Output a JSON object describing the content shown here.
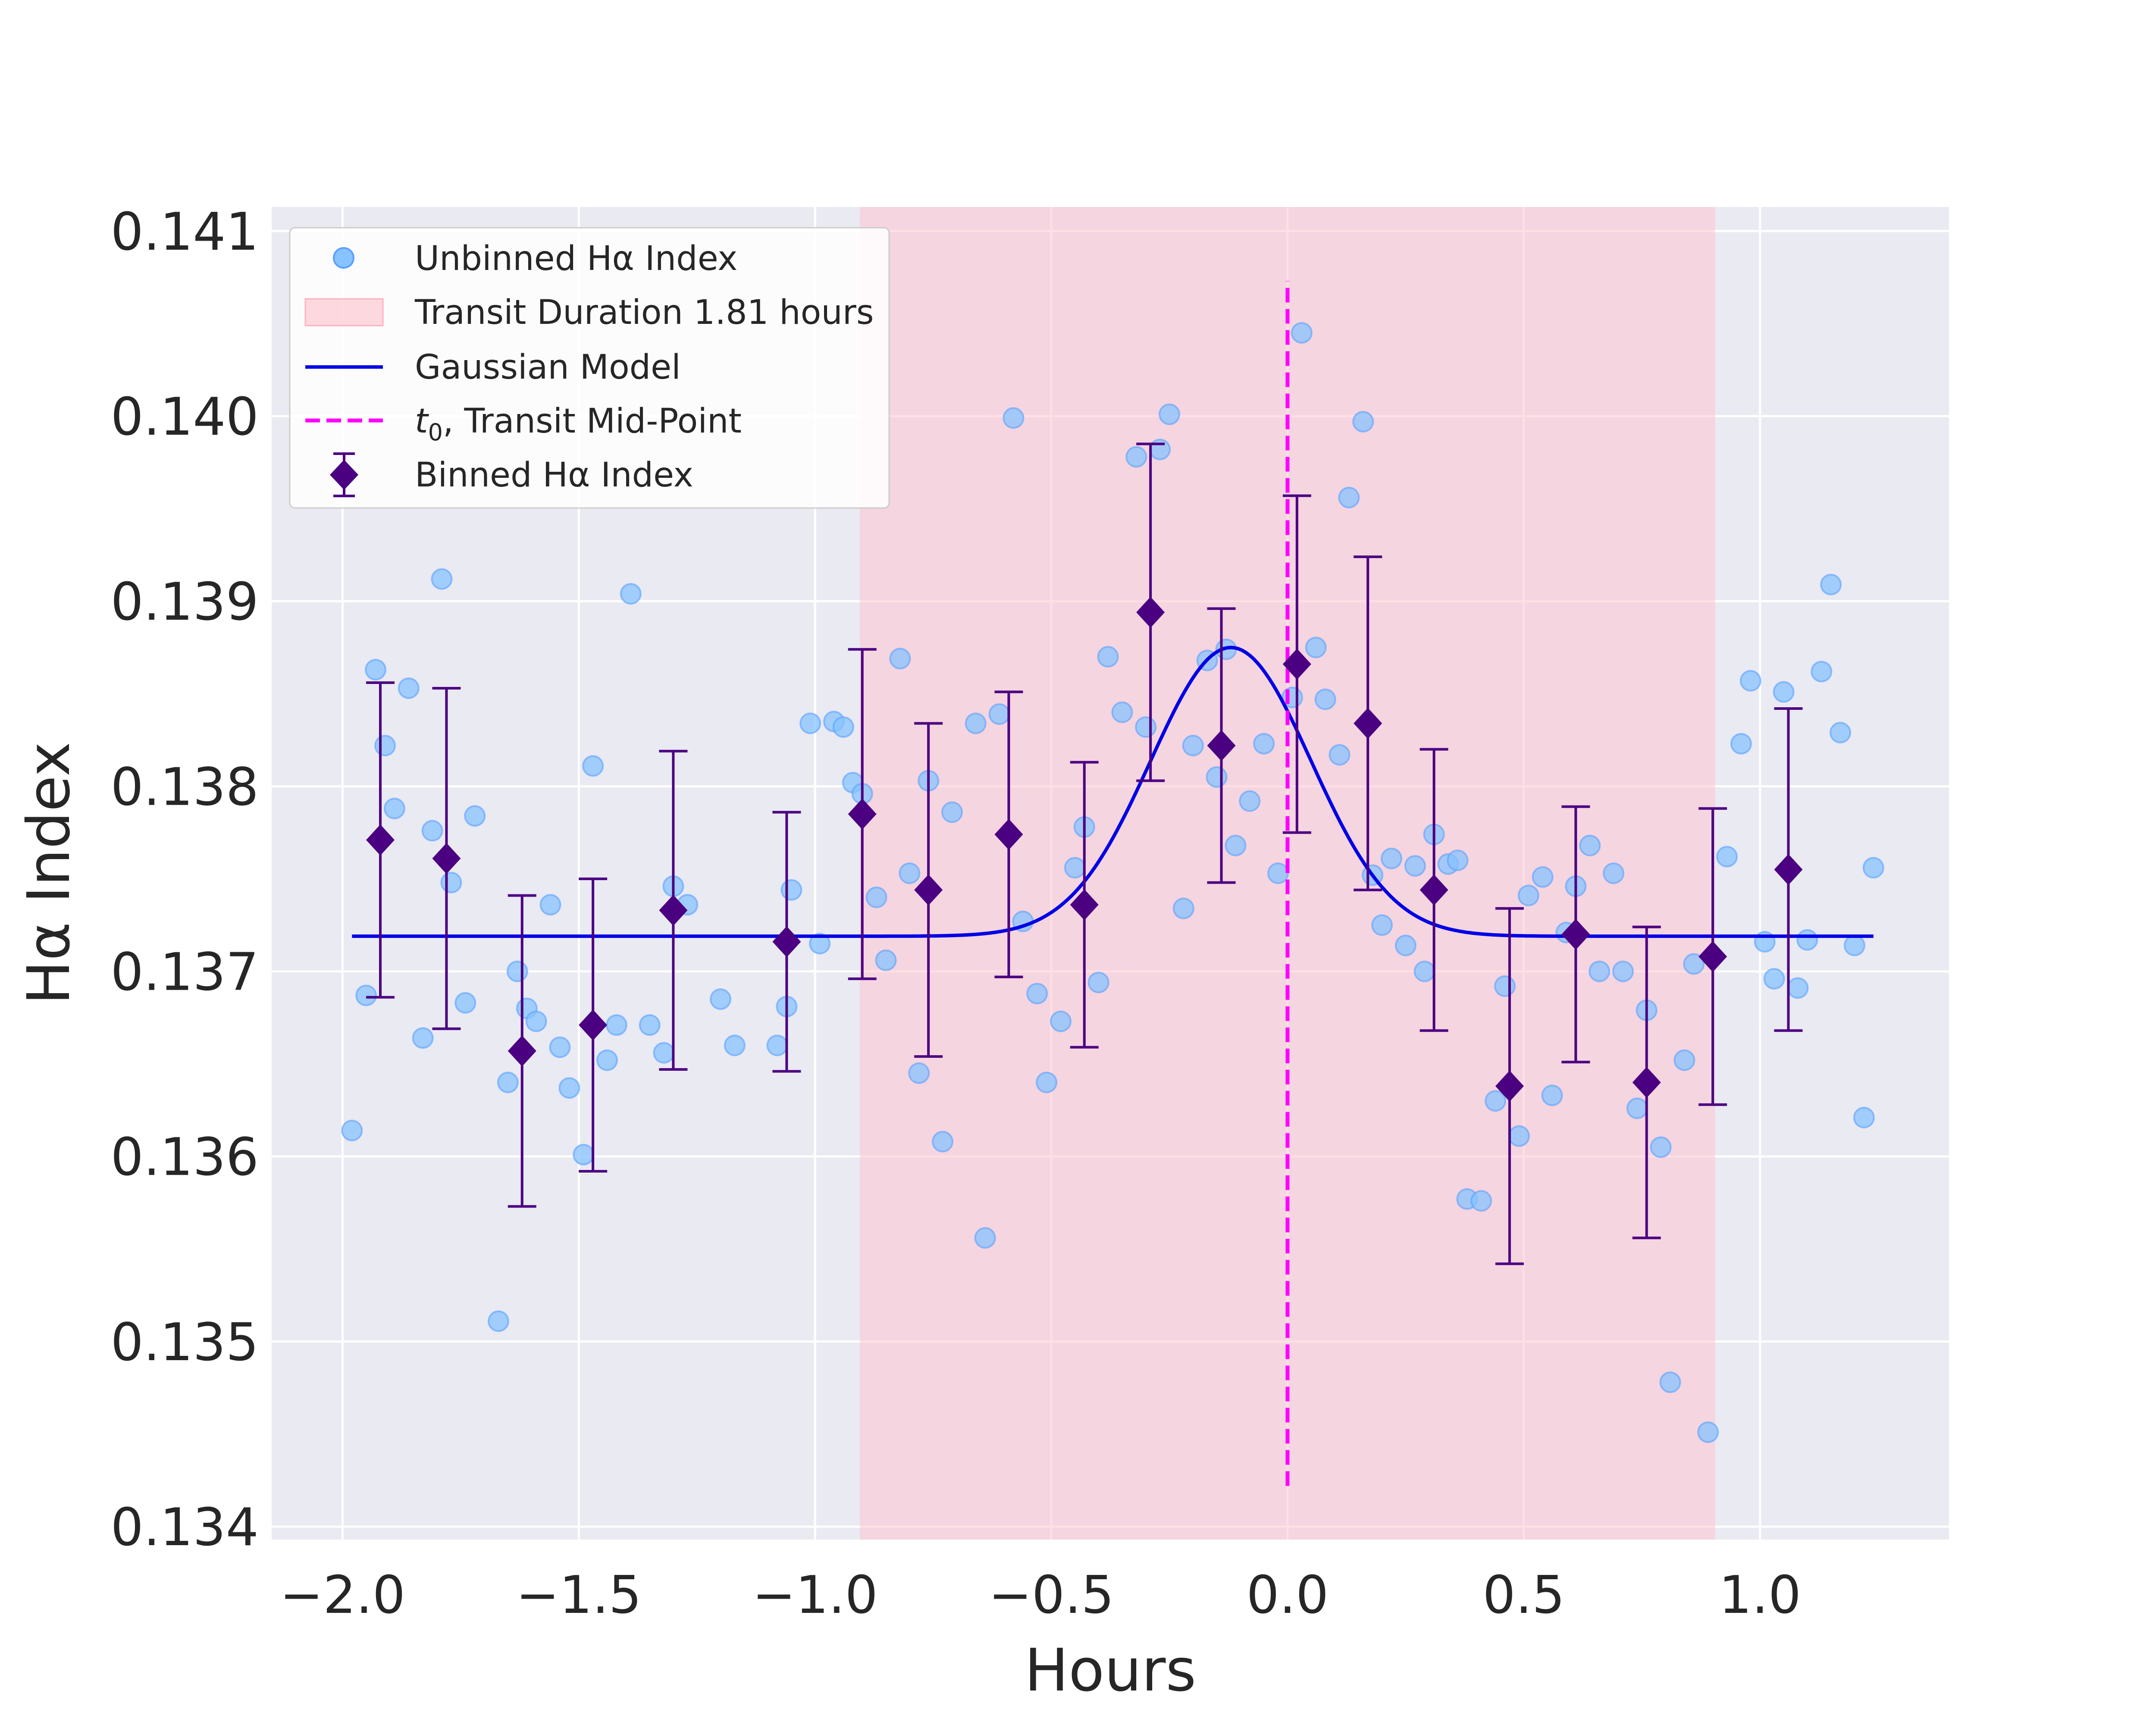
{
  "chart_data": {
    "type": "scatter",
    "title": "",
    "xlabel": "Hours",
    "ylabel": "Hα Index",
    "xlim": [
      -2.15,
      1.4
    ],
    "ylim": [
      0.13393,
      0.14113
    ],
    "x_ticks": [
      -2.0,
      -1.5,
      -1.0,
      -0.5,
      0.0,
      0.5,
      1.0
    ],
    "x_tick_labels": [
      "−2.0",
      "−1.5",
      "−1.0",
      "−0.5",
      "0.0",
      "0.5",
      "1.0"
    ],
    "y_ticks": [
      0.134,
      0.135,
      0.136,
      0.137,
      0.138,
      0.139,
      0.14,
      0.141
    ],
    "y_tick_labels": [
      "0.134",
      "0.135",
      "0.136",
      "0.137",
      "0.138",
      "0.139",
      "0.140",
      "0.141"
    ],
    "grid": true,
    "legend": {
      "placement": "upper-left",
      "items": [
        {
          "label": "Unbinned Hα Index",
          "kind": "scatter"
        },
        {
          "label": "Transit Duration 1.81 hours",
          "kind": "patch"
        },
        {
          "label": "Gaussian Model",
          "kind": "line"
        },
        {
          "label": "t0, Transit Mid-Point",
          "kind": "dashed"
        },
        {
          "label": "Binned Hα Index",
          "kind": "errorbar"
        }
      ]
    },
    "transit": {
      "start": -0.905,
      "end": 0.905,
      "label": "Transit Duration 1.81 hours"
    },
    "t0": {
      "x": 0.0,
      "y_range": [
        0.13422,
        0.14073
      ],
      "label": "t0, Transit Mid-Point"
    },
    "gaussian_model": {
      "baseline": 0.13719,
      "amplitude": 0.00156,
      "center": -0.12,
      "sigma": 0.17,
      "x_range": [
        -1.98,
        1.24
      ],
      "label": "Gaussian Model"
    },
    "unbinned": {
      "label": "Unbinned Hα Index",
      "x": [
        -1.98,
        -1.95,
        -1.93,
        -1.91,
        -1.89,
        -1.86,
        -1.83,
        -1.81,
        -1.79,
        -1.77,
        -1.74,
        -1.72,
        -1.67,
        -1.65,
        -1.63,
        -1.61,
        -1.59,
        -1.56,
        -1.54,
        -1.52,
        -1.49,
        -1.47,
        -1.44,
        -1.42,
        -1.39,
        -1.35,
        -1.32,
        -1.3,
        -1.27,
        -1.2,
        -1.17,
        -1.08,
        -1.06,
        -1.05,
        -1.01,
        -0.99,
        -0.96,
        -0.94,
        -0.92,
        -0.9,
        -0.87,
        -0.85,
        -0.82,
        -0.8,
        -0.78,
        -0.76,
        -0.73,
        -0.71,
        -0.66,
        -0.64,
        -0.61,
        -0.58,
        -0.56,
        -0.53,
        -0.51,
        -0.48,
        -0.45,
        -0.43,
        -0.4,
        -0.38,
        -0.35,
        -0.32,
        -0.3,
        -0.27,
        -0.25,
        -0.22,
        -0.2,
        -0.17,
        -0.15,
        -0.13,
        -0.11,
        -0.08,
        -0.05,
        -0.02,
        0.01,
        0.03,
        0.06,
        0.08,
        0.11,
        0.13,
        0.16,
        0.18,
        0.2,
        0.22,
        0.25,
        0.27,
        0.29,
        0.31,
        0.34,
        0.36,
        0.38,
        0.41,
        0.44,
        0.46,
        0.49,
        0.51,
        0.54,
        0.56,
        0.59,
        0.61,
        0.64,
        0.66,
        0.69,
        0.71,
        0.74,
        0.76,
        0.79,
        0.81,
        0.84,
        0.86,
        0.89,
        0.93,
        0.96,
        0.98,
        1.01,
        1.03,
        1.05,
        1.08,
        1.1,
        1.13,
        1.15,
        1.17,
        1.2,
        1.22,
        1.24
      ],
      "y": [
        0.13614,
        0.13687,
        0.13863,
        0.13822,
        0.13788,
        0.13853,
        0.13664,
        0.13776,
        0.13912,
        0.13748,
        0.13683,
        0.13784,
        0.13511,
        0.1364,
        0.137,
        0.1368,
        0.13673,
        0.13736,
        0.13659,
        0.13637,
        0.13601,
        0.13811,
        0.13652,
        0.13671,
        0.13904,
        0.13671,
        0.13656,
        0.13746,
        0.13736,
        0.13685,
        0.1366,
        0.1366,
        0.13681,
        0.13744,
        0.13834,
        0.13715,
        0.13835,
        0.13832,
        0.13802,
        0.13796,
        0.1374,
        0.13706,
        0.13869,
        0.13753,
        0.13645,
        0.13803,
        0.13608,
        0.13786,
        0.13834,
        0.13556,
        0.13839,
        0.13999,
        0.13727,
        0.13688,
        0.1364,
        0.13673,
        0.13756,
        0.13778,
        0.13694,
        0.1387,
        0.1384,
        0.13978,
        0.13832,
        0.13982,
        0.14001,
        0.13734,
        0.13822,
        0.13868,
        0.13805,
        0.13874,
        0.13768,
        0.13792,
        0.13823,
        0.13753,
        0.13848,
        0.14045,
        0.13875,
        0.13847,
        0.13817,
        0.13956,
        0.13997,
        0.13752,
        0.13725,
        0.13761,
        0.13714,
        0.13757,
        0.137,
        0.13774,
        0.13758,
        0.1376,
        0.13577,
        0.13576,
        0.1363,
        0.13692,
        0.13611,
        0.13741,
        0.13751,
        0.13633,
        0.13721,
        0.13746,
        0.13768,
        0.137,
        0.13753,
        0.137,
        0.13626,
        0.13679,
        0.13605,
        0.13478,
        0.13652,
        0.13704,
        0.13451,
        0.13762,
        0.13823,
        0.13857,
        0.13716,
        0.13696,
        0.13851,
        0.13691,
        0.13717,
        0.13862,
        0.13909,
        0.13829,
        0.13714,
        0.13621,
        0.13756
      ]
    },
    "binned": {
      "label": "Binned Hα Index",
      "x": [
        -1.92,
        -1.78,
        -1.62,
        -1.47,
        -1.3,
        -1.06,
        -0.9,
        -0.76,
        -0.59,
        -0.43,
        -0.29,
        -0.14,
        0.02,
        0.17,
        0.31,
        0.47,
        0.61,
        0.76,
        0.9,
        1.06
      ],
      "y": [
        0.13771,
        0.13761,
        0.13657,
        0.13671,
        0.13733,
        0.13716,
        0.13785,
        0.13744,
        0.13774,
        0.13736,
        0.13894,
        0.13822,
        0.13866,
        0.13834,
        0.13744,
        0.13638,
        0.1372,
        0.1364,
        0.13708,
        0.13755
      ],
      "yerr": [
        0.00085,
        0.00092,
        0.00084,
        0.00079,
        0.00086,
        0.0007,
        0.00089,
        0.0009,
        0.00077,
        0.00077,
        0.00091,
        0.00074,
        0.00091,
        0.0009,
        0.00076,
        0.00096,
        0.00069,
        0.00084,
        0.0008,
        0.00087
      ]
    }
  }
}
